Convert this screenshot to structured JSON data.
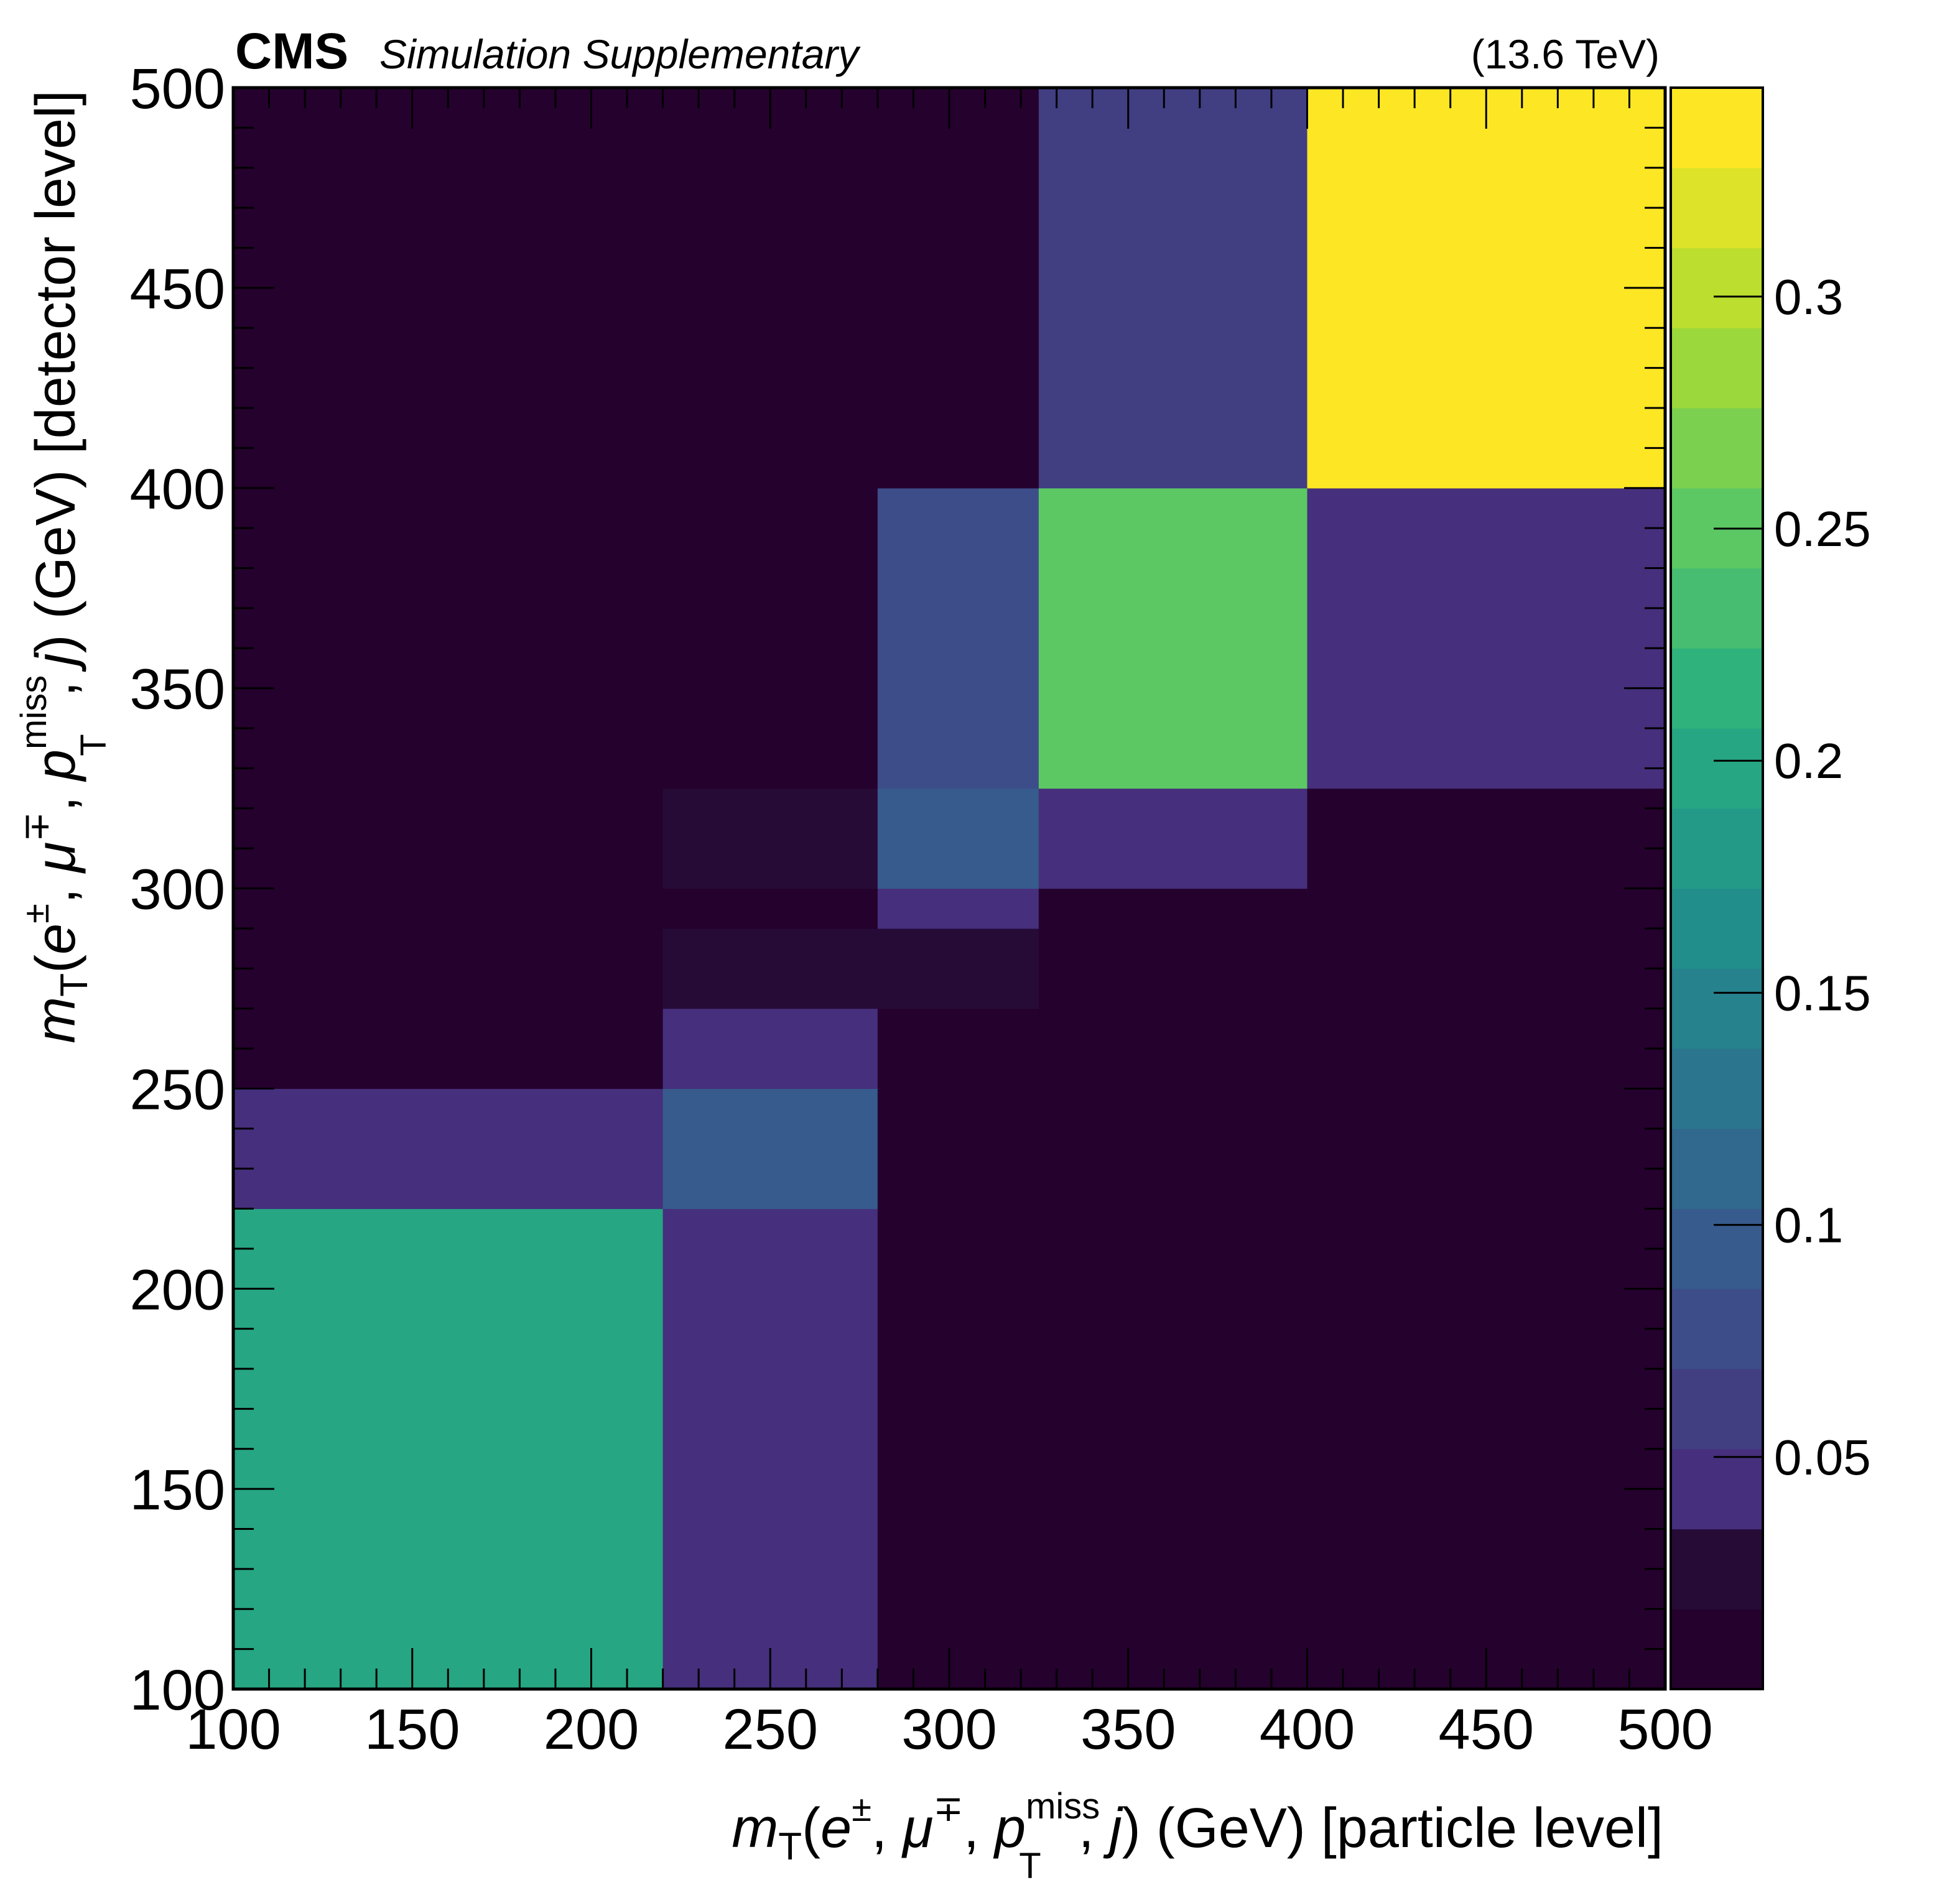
{
  "header": {
    "experiment": "CMS",
    "subtitle": "Simulation Supplementary",
    "energy": "(13.6 TeV)"
  },
  "chart_data": {
    "type": "heatmap",
    "x_axis": {
      "label_parts": {
        "m": "m",
        "T": "T",
        "open": "(",
        "e": "e",
        "pm": "±",
        "sep1": ", ",
        "mu": "μ",
        "mp": "∓",
        "sep2": ", ",
        "p": "p",
        "miss": "miss",
        "sep3": ", ",
        "j": "j",
        "close": ")",
        "unit": " (GeV) [particle level]"
      },
      "range": [
        100,
        500
      ],
      "ticks": [
        "100",
        "150",
        "200",
        "250",
        "300",
        "350",
        "400",
        "450",
        "500"
      ],
      "bin_edges": [
        100,
        220,
        280,
        325,
        400,
        500
      ]
    },
    "y_axis": {
      "label_parts": {
        "m": "m",
        "T": "T",
        "open": "(",
        "e": "e",
        "pm": "±",
        "sep1": ", ",
        "mu": "μ",
        "mp": "∓",
        "sep2": ", ",
        "p": "p",
        "miss": "miss",
        "sep3": ", ",
        "j": "j",
        "close": ")",
        "unit": " (GeV) [detector level]"
      },
      "range": [
        100,
        500
      ],
      "ticks": [
        "100",
        "150",
        "200",
        "250",
        "300",
        "350",
        "400",
        "450",
        "500"
      ],
      "bin_edges": [
        100,
        220,
        250,
        270,
        290,
        300,
        325,
        400,
        500
      ]
    },
    "z_axis": {
      "range": [
        0,
        0.345
      ],
      "ticks": [
        "0.05",
        "0.1",
        "0.15",
        "0.2",
        "0.25",
        "0.3"
      ],
      "palette": "viridis",
      "levels": 20
    },
    "cells": [
      {
        "x": [
          100,
          220
        ],
        "y": [
          100,
          220
        ],
        "z": 0.2
      },
      {
        "x": [
          220,
          280
        ],
        "y": [
          100,
          220
        ],
        "z": 0.04
      },
      {
        "x": [
          280,
          325
        ],
        "y": [
          100,
          220
        ],
        "z": 0.005
      },
      {
        "x": [
          325,
          400
        ],
        "y": [
          100,
          220
        ],
        "z": 0.005
      },
      {
        "x": [
          400,
          500
        ],
        "y": [
          100,
          220
        ],
        "z": 0.005
      },
      {
        "x": [
          100,
          220
        ],
        "y": [
          220,
          250
        ],
        "z": 0.04
      },
      {
        "x": [
          220,
          280
        ],
        "y": [
          220,
          250
        ],
        "z": 0.1
      },
      {
        "x": [
          280,
          325
        ],
        "y": [
          220,
          250
        ],
        "z": 0.005
      },
      {
        "x": [
          325,
          400
        ],
        "y": [
          220,
          250
        ],
        "z": 0.005
      },
      {
        "x": [
          400,
          500
        ],
        "y": [
          220,
          250
        ],
        "z": 0.005
      },
      {
        "x": [
          100,
          220
        ],
        "y": [
          250,
          270
        ],
        "z": 0.005
      },
      {
        "x": [
          220,
          280
        ],
        "y": [
          250,
          270
        ],
        "z": 0.045
      },
      {
        "x": [
          280,
          325
        ],
        "y": [
          250,
          270
        ],
        "z": 0.005
      },
      {
        "x": [
          325,
          400
        ],
        "y": [
          250,
          270
        ],
        "z": 0.005
      },
      {
        "x": [
          400,
          500
        ],
        "y": [
          250,
          270
        ],
        "z": 0.005
      },
      {
        "x": [
          100,
          220
        ],
        "y": [
          270,
          290
        ],
        "z": 0.005
      },
      {
        "x": [
          220,
          280
        ],
        "y": [
          270,
          290
        ],
        "z": 0.025
      },
      {
        "x": [
          280,
          325
        ],
        "y": [
          270,
          290
        ],
        "z": 0.025
      },
      {
        "x": [
          325,
          400
        ],
        "y": [
          270,
          290
        ],
        "z": 0.005
      },
      {
        "x": [
          400,
          500
        ],
        "y": [
          270,
          290
        ],
        "z": 0.005
      },
      {
        "x": [
          100,
          220
        ],
        "y": [
          290,
          300
        ],
        "z": 0.005
      },
      {
        "x": [
          220,
          280
        ],
        "y": [
          290,
          300
        ],
        "z": 0.005
      },
      {
        "x": [
          280,
          325
        ],
        "y": [
          290,
          300
        ],
        "z": 0.04
      },
      {
        "x": [
          325,
          400
        ],
        "y": [
          290,
          300
        ],
        "z": 0.005
      },
      {
        "x": [
          400,
          500
        ],
        "y": [
          290,
          300
        ],
        "z": 0.005
      },
      {
        "x": [
          100,
          220
        ],
        "y": [
          300,
          325
        ],
        "z": 0.005
      },
      {
        "x": [
          220,
          280
        ],
        "y": [
          300,
          325
        ],
        "z": 0.03
      },
      {
        "x": [
          280,
          325
        ],
        "y": [
          300,
          325
        ],
        "z": 0.1
      },
      {
        "x": [
          325,
          400
        ],
        "y": [
          300,
          325
        ],
        "z": 0.035
      },
      {
        "x": [
          400,
          500
        ],
        "y": [
          300,
          325
        ],
        "z": 0.005
      },
      {
        "x": [
          100,
          220
        ],
        "y": [
          325,
          400
        ],
        "z": 0.005
      },
      {
        "x": [
          220,
          280
        ],
        "y": [
          325,
          400
        ],
        "z": 0.005
      },
      {
        "x": [
          280,
          325
        ],
        "y": [
          325,
          400
        ],
        "z": 0.08
      },
      {
        "x": [
          325,
          400
        ],
        "y": [
          325,
          400
        ],
        "z": 0.245
      },
      {
        "x": [
          400,
          500
        ],
        "y": [
          325,
          400
        ],
        "z": 0.04
      },
      {
        "x": [
          100,
          220
        ],
        "y": [
          400,
          500
        ],
        "z": 0.005
      },
      {
        "x": [
          220,
          280
        ],
        "y": [
          400,
          500
        ],
        "z": 0.005
      },
      {
        "x": [
          280,
          325
        ],
        "y": [
          400,
          500
        ],
        "z": 0.005
      },
      {
        "x": [
          325,
          400
        ],
        "y": [
          400,
          500
        ],
        "z": 0.055
      },
      {
        "x": [
          400,
          500
        ],
        "y": [
          400,
          500
        ],
        "z": 0.345
      }
    ],
    "grid": false,
    "legend": "colorbar-right"
  }
}
